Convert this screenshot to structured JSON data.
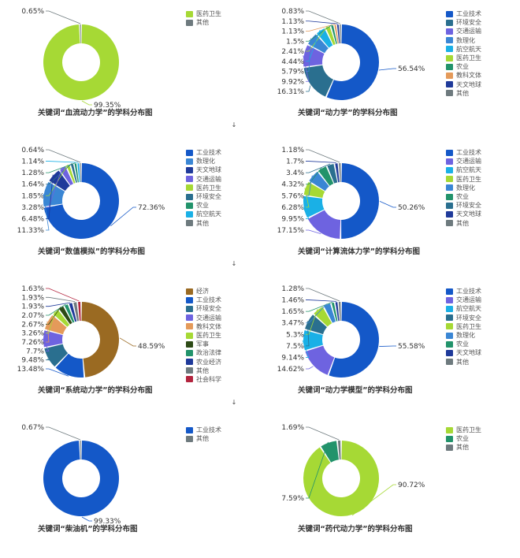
{
  "chart_data": [
    {
      "type": "pie",
      "title": "关键词“血流动力学”的学科分布图",
      "categories": [
        "医药卫生",
        "其他"
      ],
      "values": [
        99.35,
        0.65
      ],
      "colors": [
        "#a6d935",
        "#6e7a7e"
      ]
    },
    {
      "type": "pie",
      "title": "关键词“动力学”的学科分布图",
      "categories": [
        "工业技术",
        "环境安全",
        "交通运输",
        "数理化",
        "航空航天",
        "医药卫生",
        "农业",
        "教科文体",
        "天文地球",
        "其他"
      ],
      "values": [
        56.54,
        16.31,
        9.92,
        5.79,
        4.44,
        2.41,
        1.5,
        1.13,
        1.13,
        0.83
      ],
      "colors": [
        "#1458c8",
        "#2a6f8f",
        "#6e63e0",
        "#3a86d4",
        "#1ab0e6",
        "#a6d935",
        "#22936b",
        "#e49a5a",
        "#1f3a9a",
        "#6e7a7e"
      ]
    },
    {
      "type": "pie",
      "title": "关键词“数值模拟”的学科分布图",
      "categories": [
        "工业技术",
        "数理化",
        "天文地球",
        "交通运输",
        "医药卫生",
        "环境安全",
        "农业",
        "航空航天",
        "其他"
      ],
      "values": [
        72.36,
        11.33,
        6.48,
        3.28,
        1.85,
        1.64,
        1.28,
        1.14,
        0.64
      ],
      "colors": [
        "#1458c8",
        "#3a86d4",
        "#1f3a9a",
        "#6e63e0",
        "#a6d935",
        "#2a6f8f",
        "#22936b",
        "#1ab0e6",
        "#6e7a7e"
      ]
    },
    {
      "type": "pie",
      "title": "关键词“计算流体力学”的学科分布图",
      "categories": [
        "工业技术",
        "交通运输",
        "航空航天",
        "医药卫生",
        "数理化",
        "农业",
        "环境安全",
        "天文地球",
        "其他"
      ],
      "values": [
        50.26,
        17.15,
        9.95,
        6.28,
        5.76,
        4.32,
        3.4,
        1.7,
        1.18
      ],
      "colors": [
        "#1458c8",
        "#6e63e0",
        "#1ab0e6",
        "#a6d935",
        "#3a86d4",
        "#22936b",
        "#2a6f8f",
        "#1f3a9a",
        "#6e7a7e"
      ]
    },
    {
      "type": "pie",
      "title": "关键词“系统动力学”的学科分布图",
      "categories": [
        "经济",
        "工业技术",
        "环境安全",
        "交通运输",
        "教科文体",
        "医药卫生",
        "军事",
        "政治法律",
        "农业经济",
        "其他",
        "社会科学"
      ],
      "values": [
        48.59,
        13.48,
        9.48,
        7.7,
        7.26,
        3.26,
        2.67,
        2.07,
        1.93,
        1.93,
        1.63
      ],
      "colors": [
        "#9a6a22",
        "#1458c8",
        "#2a6f8f",
        "#6e63e0",
        "#e49a5a",
        "#a6d935",
        "#2d4a16",
        "#22936b",
        "#1f3a9a",
        "#6e7a7e",
        "#b3243e"
      ]
    },
    {
      "type": "pie",
      "title": "关键词“动力学模型”的学科分布图",
      "categories": [
        "工业技术",
        "交通运输",
        "航空航天",
        "环境安全",
        "医药卫生",
        "数理化",
        "农业",
        "天文地球",
        "其他"
      ],
      "values": [
        55.58,
        14.62,
        9.14,
        7.5,
        5.3,
        3.47,
        1.65,
        1.46,
        1.28
      ],
      "colors": [
        "#1458c8",
        "#6e63e0",
        "#1ab0e6",
        "#2a6f8f",
        "#a6d935",
        "#3a86d4",
        "#22936b",
        "#1f3a9a",
        "#6e7a7e"
      ]
    },
    {
      "type": "pie",
      "title": "关键词“柴油机”的学科分布图",
      "categories": [
        "工业技术",
        "其他"
      ],
      "values": [
        99.33,
        0.67
      ],
      "colors": [
        "#1458c8",
        "#6e7a7e"
      ]
    },
    {
      "type": "pie",
      "title": "关键词“药代动力学”的学科分布图",
      "categories": [
        "医药卫生",
        "农业",
        "其他"
      ],
      "values": [
        90.72,
        7.59,
        1.69
      ],
      "colors": [
        "#a6d935",
        "#22936b",
        "#6e7a7e"
      ]
    }
  ],
  "pct_suffix": "%",
  "arrow_glyph": "↓"
}
